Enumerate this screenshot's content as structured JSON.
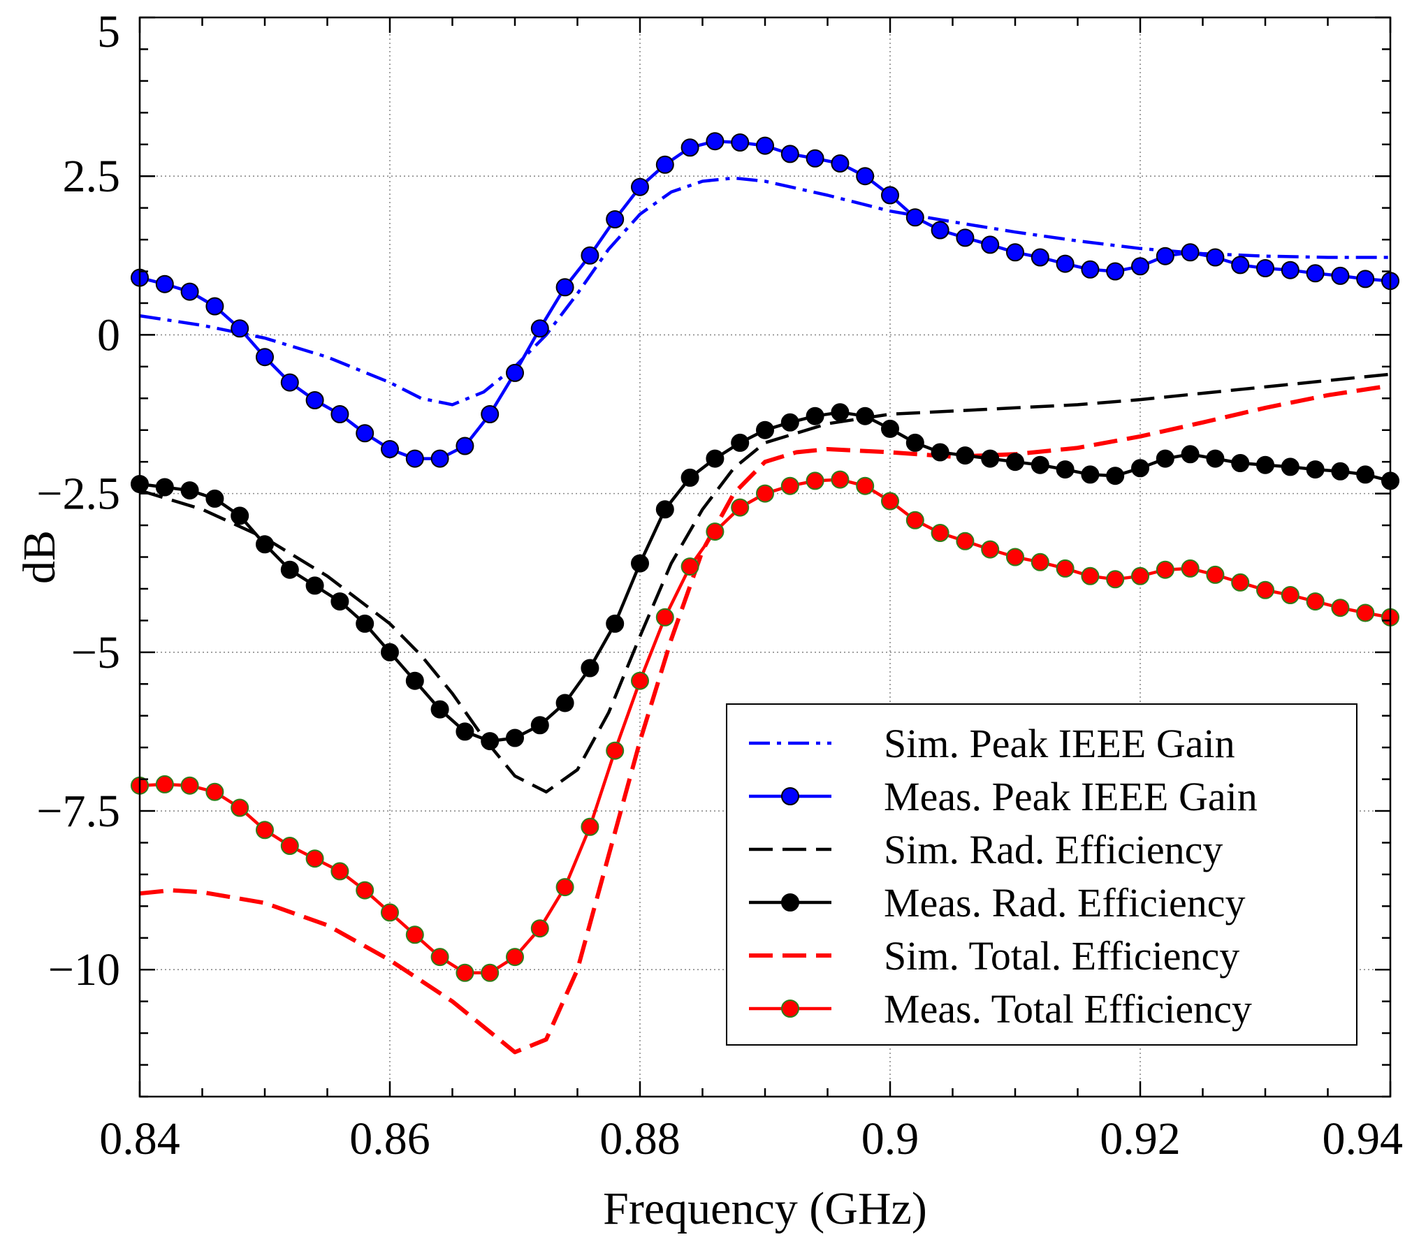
{
  "chart_data": {
    "type": "line",
    "xlabel": "Frequency (GHz)",
    "ylabel": "dB",
    "xlim": [
      0.84,
      0.94
    ],
    "ylim": [
      -12,
      5
    ],
    "xticks": [
      0.84,
      0.86,
      0.88,
      0.9,
      0.92,
      0.94
    ],
    "xtick_labels": [
      "0.84",
      "0.86",
      "0.88",
      "0.9",
      "0.92",
      "0.94"
    ],
    "yticks": [
      5,
      2.5,
      0,
      -2.5,
      -5,
      -7.5,
      -10
    ],
    "ytick_labels": [
      "5",
      "2.5",
      "0",
      "−2.5",
      "−5",
      "−7.5",
      "−10"
    ],
    "grid": true,
    "legend_position": "bottom-right",
    "series": [
      {
        "name": "Sim. Peak IEEE Gain",
        "color": "#0000ff",
        "style": "dashdot",
        "marker": "none",
        "x": [
          0.84,
          0.845,
          0.85,
          0.855,
          0.86,
          0.8625,
          0.865,
          0.8675,
          0.87,
          0.8725,
          0.875,
          0.8775,
          0.88,
          0.8825,
          0.885,
          0.8875,
          0.89,
          0.895,
          0.9,
          0.905,
          0.91,
          0.915,
          0.92,
          0.925,
          0.93,
          0.935,
          0.94
        ],
        "y": [
          0.3,
          0.15,
          -0.05,
          -0.35,
          -0.75,
          -1.0,
          -1.1,
          -0.9,
          -0.5,
          0.0,
          0.65,
          1.35,
          1.9,
          2.25,
          2.42,
          2.47,
          2.42,
          2.2,
          1.95,
          1.78,
          1.62,
          1.48,
          1.36,
          1.28,
          1.24,
          1.22,
          1.22
        ]
      },
      {
        "name": "Meas. Peak IEEE Gain",
        "color": "#0000ff",
        "style": "solid",
        "marker": "circle",
        "x": [
          0.84,
          0.842,
          0.844,
          0.846,
          0.848,
          0.85,
          0.852,
          0.854,
          0.856,
          0.858,
          0.86,
          0.862,
          0.864,
          0.866,
          0.868,
          0.87,
          0.872,
          0.874,
          0.876,
          0.878,
          0.88,
          0.882,
          0.884,
          0.886,
          0.888,
          0.89,
          0.892,
          0.894,
          0.896,
          0.898,
          0.9,
          0.902,
          0.904,
          0.906,
          0.908,
          0.91,
          0.912,
          0.914,
          0.916,
          0.918,
          0.92,
          0.922,
          0.924,
          0.926,
          0.928,
          0.93,
          0.932,
          0.934,
          0.936,
          0.938,
          0.94
        ],
        "y": [
          0.9,
          0.8,
          0.68,
          0.45,
          0.1,
          -0.35,
          -0.75,
          -1.03,
          -1.25,
          -1.55,
          -1.8,
          -1.95,
          -1.95,
          -1.75,
          -1.25,
          -0.6,
          0.1,
          0.75,
          1.25,
          1.82,
          2.33,
          2.68,
          2.95,
          3.05,
          3.03,
          2.98,
          2.85,
          2.78,
          2.7,
          2.5,
          2.2,
          1.85,
          1.65,
          1.53,
          1.42,
          1.3,
          1.22,
          1.12,
          1.03,
          1.0,
          1.08,
          1.24,
          1.3,
          1.22,
          1.1,
          1.05,
          1.02,
          0.97,
          0.93,
          0.88,
          0.85
        ]
      },
      {
        "name": "Sim. Rad. Efficiency",
        "color": "#000000",
        "style": "dashed",
        "marker": "none",
        "x": [
          0.84,
          0.845,
          0.85,
          0.855,
          0.86,
          0.8625,
          0.865,
          0.8675,
          0.87,
          0.8725,
          0.875,
          0.8775,
          0.88,
          0.8825,
          0.885,
          0.8875,
          0.89,
          0.895,
          0.9,
          0.905,
          0.91,
          0.915,
          0.92,
          0.925,
          0.93,
          0.935,
          0.94
        ],
        "y": [
          -2.45,
          -2.75,
          -3.2,
          -3.8,
          -4.55,
          -5.05,
          -5.65,
          -6.35,
          -6.95,
          -7.2,
          -6.85,
          -5.95,
          -4.75,
          -3.6,
          -2.75,
          -2.1,
          -1.7,
          -1.4,
          -1.25,
          -1.2,
          -1.15,
          -1.1,
          -1.02,
          -0.92,
          -0.82,
          -0.72,
          -0.62
        ]
      },
      {
        "name": "Meas. Rad. Efficiency",
        "color": "#000000",
        "style": "solid",
        "marker": "circle",
        "x": [
          0.84,
          0.842,
          0.844,
          0.846,
          0.848,
          0.85,
          0.852,
          0.854,
          0.856,
          0.858,
          0.86,
          0.862,
          0.864,
          0.866,
          0.868,
          0.87,
          0.872,
          0.874,
          0.876,
          0.878,
          0.88,
          0.882,
          0.884,
          0.886,
          0.888,
          0.89,
          0.892,
          0.894,
          0.896,
          0.898,
          0.9,
          0.902,
          0.904,
          0.906,
          0.908,
          0.91,
          0.912,
          0.914,
          0.916,
          0.918,
          0.92,
          0.922,
          0.924,
          0.926,
          0.928,
          0.93,
          0.932,
          0.934,
          0.936,
          0.938,
          0.94
        ],
        "y": [
          -2.35,
          -2.4,
          -2.45,
          -2.58,
          -2.85,
          -3.3,
          -3.7,
          -3.95,
          -4.2,
          -4.55,
          -5.0,
          -5.45,
          -5.9,
          -6.25,
          -6.4,
          -6.35,
          -6.15,
          -5.8,
          -5.25,
          -4.55,
          -3.6,
          -2.75,
          -2.25,
          -1.95,
          -1.7,
          -1.5,
          -1.38,
          -1.28,
          -1.22,
          -1.28,
          -1.48,
          -1.7,
          -1.85,
          -1.9,
          -1.95,
          -2.0,
          -2.05,
          -2.12,
          -2.2,
          -2.22,
          -2.1,
          -1.95,
          -1.88,
          -1.95,
          -2.02,
          -2.05,
          -2.08,
          -2.12,
          -2.15,
          -2.2,
          -2.3
        ]
      },
      {
        "name": "Sim. Total. Efficiency",
        "color": "#ff0000",
        "style": "dashed",
        "marker": "none",
        "x": [
          0.84,
          0.8425,
          0.845,
          0.85,
          0.855,
          0.86,
          0.865,
          0.87,
          0.8725,
          0.875,
          0.8775,
          0.88,
          0.8825,
          0.885,
          0.8875,
          0.89,
          0.8925,
          0.895,
          0.9,
          0.905,
          0.91,
          0.915,
          0.92,
          0.925,
          0.93,
          0.935,
          0.94
        ],
        "y": [
          -8.8,
          -8.75,
          -8.78,
          -8.95,
          -9.3,
          -9.85,
          -10.5,
          -11.3,
          -11.1,
          -10.0,
          -8.2,
          -6.4,
          -4.8,
          -3.4,
          -2.5,
          -2.0,
          -1.85,
          -1.8,
          -1.85,
          -1.92,
          -1.88,
          -1.78,
          -1.6,
          -1.38,
          -1.15,
          -0.95,
          -0.8
        ]
      },
      {
        "name": "Meas. Total Efficiency",
        "color": "#ff0000",
        "style": "solid",
        "marker": "circle",
        "x": [
          0.84,
          0.842,
          0.844,
          0.846,
          0.848,
          0.85,
          0.852,
          0.854,
          0.856,
          0.858,
          0.86,
          0.862,
          0.864,
          0.866,
          0.868,
          0.87,
          0.872,
          0.874,
          0.876,
          0.878,
          0.88,
          0.882,
          0.884,
          0.886,
          0.888,
          0.89,
          0.892,
          0.894,
          0.896,
          0.898,
          0.9,
          0.902,
          0.904,
          0.906,
          0.908,
          0.91,
          0.912,
          0.914,
          0.916,
          0.918,
          0.92,
          0.922,
          0.924,
          0.926,
          0.928,
          0.93,
          0.932,
          0.934,
          0.936,
          0.938,
          0.94
        ],
        "y": [
          -7.1,
          -7.08,
          -7.1,
          -7.2,
          -7.45,
          -7.8,
          -8.05,
          -8.25,
          -8.45,
          -8.75,
          -9.1,
          -9.45,
          -9.8,
          -10.05,
          -10.05,
          -9.8,
          -9.35,
          -8.7,
          -7.75,
          -6.55,
          -5.45,
          -4.45,
          -3.65,
          -3.1,
          -2.72,
          -2.5,
          -2.38,
          -2.3,
          -2.28,
          -2.38,
          -2.62,
          -2.92,
          -3.12,
          -3.25,
          -3.38,
          -3.5,
          -3.58,
          -3.68,
          -3.8,
          -3.85,
          -3.8,
          -3.7,
          -3.68,
          -3.78,
          -3.9,
          -4.02,
          -4.1,
          -4.2,
          -4.3,
          -4.38,
          -4.45
        ]
      }
    ]
  }
}
